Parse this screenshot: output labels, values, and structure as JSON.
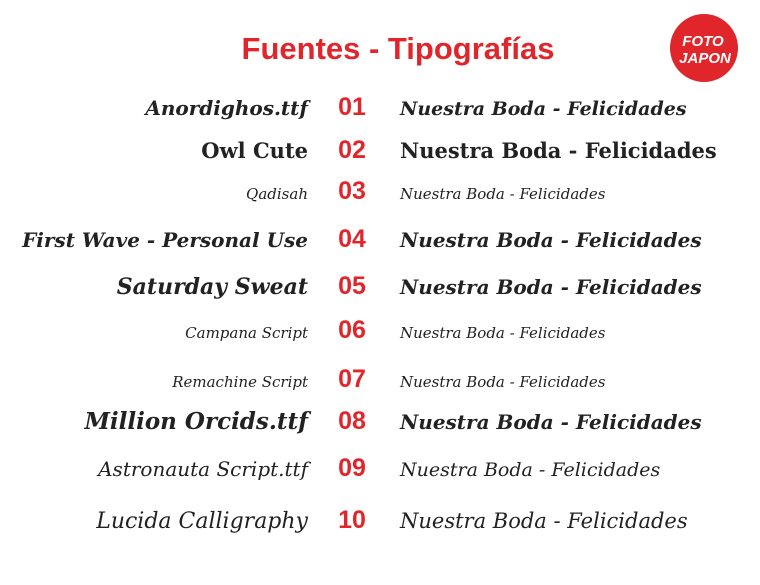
{
  "header": {
    "title": "Fuentes - Tipografías",
    "logo": {
      "line1": "FOTO",
      "line2": "JAPON"
    }
  },
  "rows": [
    {
      "font": "Anordighos.ttf",
      "number": "01",
      "sample": "Nuestra Boda - Felicidades"
    },
    {
      "font": "Owl Cute",
      "number": "02",
      "sample": "Nuestra Boda - Felicidades"
    },
    {
      "font": "Qadisah",
      "number": "03",
      "sample": "Nuestra Boda - Felicidades"
    },
    {
      "font": "First Wave - Personal Use",
      "number": "04",
      "sample": "Nuestra Boda - Felicidades"
    },
    {
      "font": "Saturday Sweat",
      "number": "05",
      "sample": "Nuestra Boda - Felicidades"
    },
    {
      "font": "Campana Script",
      "number": "06",
      "sample": "Nuestra Boda - Felicidades"
    },
    {
      "font": "Remachine Script",
      "number": "07",
      "sample": "Nuestra Boda - Felicidades"
    },
    {
      "font": "Million Orcids.ttf",
      "number": "08",
      "sample": "Nuestra Boda - Felicidades"
    },
    {
      "font": "Astronauta Script.ttf",
      "number": "09",
      "sample": "Nuestra Boda - Felicidades"
    },
    {
      "font": "Lucida Calligraphy",
      "number": "10",
      "sample": "Nuestra Boda - Felicidades"
    }
  ]
}
